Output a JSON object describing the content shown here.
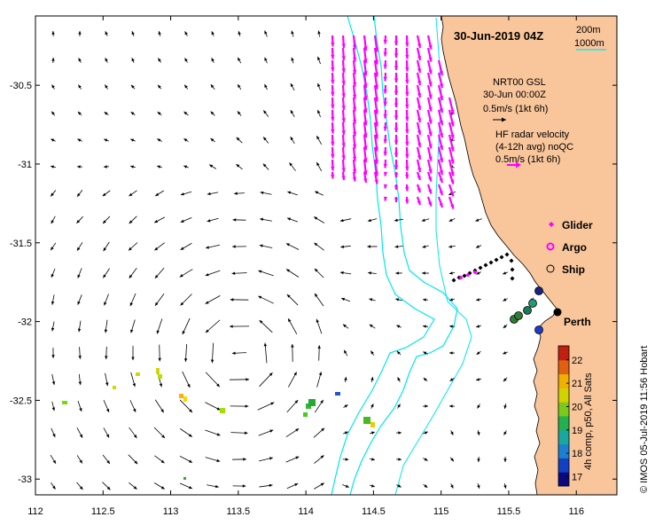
{
  "title": "30-Jun-2019 04Z",
  "depth_legend": {
    "contour_1": "200m",
    "contour_2": "1000m"
  },
  "gsl_note": {
    "line1": "NRT00 GSL",
    "line2": "30-Jun 00:00Z",
    "line3": "0.5m/s (1kt 6h)"
  },
  "radar_note": {
    "line1": "HF radar velocity",
    "line2": "(4-12h avg) noQC",
    "line3": "0.5m/s (1kt 6h)"
  },
  "legend": [
    {
      "label": "Glider",
      "symbol": "diamond",
      "color": "#ff00ff"
    },
    {
      "label": "Argo",
      "symbol": "ring",
      "color": "#ff00ff"
    },
    {
      "label": "Ship",
      "symbol": "circle",
      "color": "#000000"
    }
  ],
  "place_label": "Perth",
  "colorbar": {
    "label": "4h comp, p50, All Sats",
    "ticks": [
      "17",
      "18",
      "19",
      "20",
      "21",
      "22"
    ],
    "min": 16.6,
    "max": 22.6
  },
  "x_ticks": [
    "112",
    "112.5",
    "113",
    "113.5",
    "114",
    "114.5",
    "115",
    "115.5",
    "116"
  ],
  "y_ticks": [
    "-30.5",
    "-31",
    "-31.5",
    "-32",
    "-32.5",
    "-33"
  ],
  "extent": {
    "lon_min": 112,
    "lon_max": 116.3,
    "lat_min": -33.1,
    "lat_max": -30.06
  },
  "credit": "© IMOS 05-Jul-2019 11:56 Hobart",
  "colors": {
    "land": "#f9c59b",
    "isobath": "#00e5ee",
    "radar": "#ff00ff",
    "vector": "#000000"
  }
}
